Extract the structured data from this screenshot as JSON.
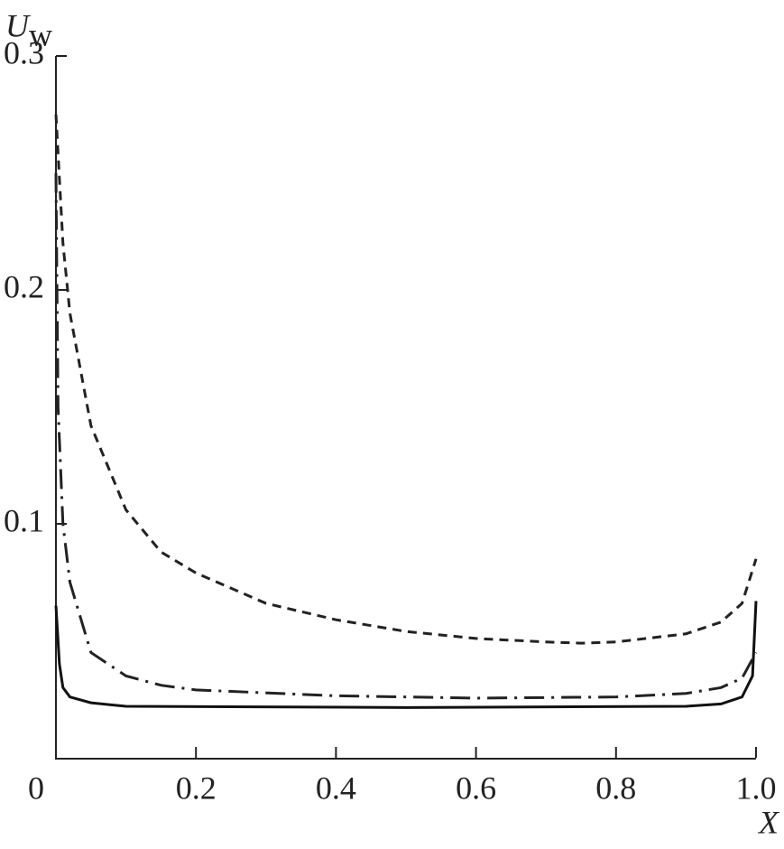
{
  "chart_data": {
    "type": "line",
    "x_label": "X",
    "y_label": "U",
    "y_label_subscript": "w",
    "xlim": [
      0,
      1
    ],
    "ylim": [
      0,
      0.3
    ],
    "xticks": [
      0,
      0.2,
      0.4,
      0.6,
      0.8,
      {
        "value": 1,
        "label": "1.0"
      }
    ],
    "yticks": [
      0.1,
      0.2,
      0.3
    ],
    "series": [
      {
        "color": "#222222",
        "style": "dashed",
        "x": [
          0,
          0.01,
          0.02,
          0.05,
          0.1,
          0.15,
          0.2,
          0.3,
          0.4,
          0.5,
          0.6,
          0.7,
          0.75,
          0.8,
          0.9,
          0.95,
          0.98,
          1.0
        ],
        "values": [
          0.275,
          0.22,
          0.19,
          0.142,
          0.106,
          0.088,
          0.079,
          0.066,
          0.059,
          0.054,
          0.051,
          0.0495,
          0.049,
          0.0495,
          0.053,
          0.058,
          0.066,
          0.085
        ]
      },
      {
        "color": "#222222",
        "style": "dashdot",
        "x": [
          0,
          0.003,
          0.01,
          0.02,
          0.05,
          0.1,
          0.15,
          0.2,
          0.4,
          0.6,
          0.8,
          0.9,
          0.95,
          0.98,
          1.0
        ],
        "values": [
          0.25,
          0.15,
          0.1,
          0.075,
          0.045,
          0.035,
          0.031,
          0.029,
          0.0265,
          0.0255,
          0.026,
          0.0275,
          0.03,
          0.034,
          0.045
        ]
      },
      {
        "color": "#111111",
        "style": "solid",
        "x": [
          0,
          0.005,
          0.01,
          0.02,
          0.05,
          0.1,
          0.5,
          0.9,
          0.95,
          0.98,
          0.995,
          1.0
        ],
        "values": [
          0.065,
          0.04,
          0.03,
          0.026,
          0.0235,
          0.022,
          0.0215,
          0.022,
          0.023,
          0.026,
          0.035,
          0.067
        ]
      }
    ]
  }
}
